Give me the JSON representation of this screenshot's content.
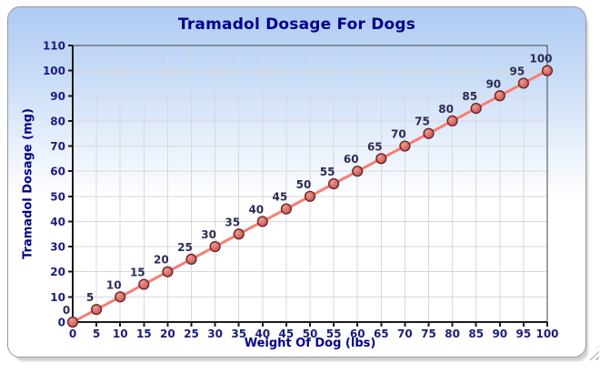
{
  "window": {
    "resize_grip": "diagonal-grip"
  },
  "chart_data": {
    "type": "line",
    "title": "Tramadol Dosage For Dogs",
    "xlabel": "Weight Of Dog (lbs)",
    "ylabel": "Tramadol Dosage (mg)",
    "x": [
      0,
      5,
      10,
      15,
      20,
      25,
      30,
      35,
      40,
      45,
      50,
      55,
      60,
      65,
      70,
      75,
      80,
      85,
      90,
      95,
      100
    ],
    "y": [
      0,
      5,
      10,
      15,
      20,
      25,
      30,
      35,
      40,
      45,
      50,
      55,
      60,
      65,
      70,
      75,
      80,
      85,
      90,
      95,
      100
    ],
    "point_labels": [
      "0",
      "5",
      "10",
      "15",
      "20",
      "25",
      "30",
      "35",
      "40",
      "45",
      "50",
      "55",
      "60",
      "65",
      "70",
      "75",
      "80",
      "85",
      "90",
      "95",
      "100"
    ],
    "xlim": [
      0,
      100
    ],
    "ylim": [
      0,
      110
    ],
    "xticks": [
      0,
      5,
      10,
      15,
      20,
      25,
      30,
      35,
      40,
      45,
      50,
      55,
      60,
      65,
      70,
      75,
      80,
      85,
      90,
      95,
      100
    ],
    "yticks": [
      0,
      10,
      20,
      30,
      40,
      50,
      60,
      70,
      80,
      90,
      100,
      110
    ],
    "grid": true,
    "legend": false,
    "colors": {
      "title_text": "#00008b",
      "axis_label_text": "#00008b",
      "tick_text": "#1b1b7e",
      "point_label_text": "#2b2b55",
      "line": "#f97d72",
      "marker_fill_light": "#ef9a93",
      "marker_fill_dark": "#c7504e",
      "marker_stroke": "#6b2626",
      "grid_line": "#d8d8d8",
      "axis_line": "#1a1a1a",
      "plot_border": "#444444",
      "card_bg_top": "#aecbf2",
      "card_bg_bottom": "#ffffff",
      "card_border": "#9a9a9a"
    }
  }
}
